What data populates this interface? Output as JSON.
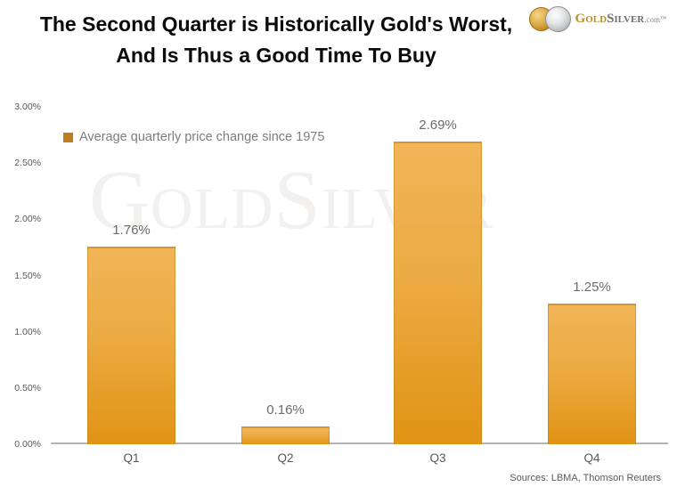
{
  "header": {
    "title_lines": [
      "The Second Quarter is Historically Gold's Worst,",
      "And Is Thus a Good Time To Buy"
    ],
    "logo": {
      "brand_gold": "Gold",
      "brand_silver": "Silver",
      "domain": ".com",
      "trademark": "™"
    }
  },
  "watermark": {
    "text": "GoldSilver"
  },
  "chart_data": {
    "type": "bar",
    "title": "The Second Quarter is Historically Gold's Worst, And Is Thus a Good Time To Buy",
    "categories": [
      "Q1",
      "Q2",
      "Q3",
      "Q4"
    ],
    "values": [
      1.76,
      0.16,
      2.69,
      1.25
    ],
    "data_labels": [
      "1.76%",
      "0.16%",
      "2.69%",
      "1.25%"
    ],
    "legend_label": "Average quarterly price change since 1975",
    "legend_position": "upper-left-inside",
    "y_ticks": [
      "3.00%",
      "2.50%",
      "2.00%",
      "1.50%",
      "1.00%",
      "0.50%",
      "0.00%"
    ],
    "ylim": [
      0,
      3
    ],
    "xlabel": "",
    "ylabel": "",
    "grid": false,
    "colors": {
      "bar_gradient_top": "#F1B558",
      "bar_gradient_bottom": "#E19314",
      "legend_swatch": "#C07D1F",
      "axis_line": "#B5B5B5",
      "label_text": "#6B6B6B"
    }
  },
  "footer": {
    "sources": "Sources: LBMA, Thomson Reuters"
  }
}
